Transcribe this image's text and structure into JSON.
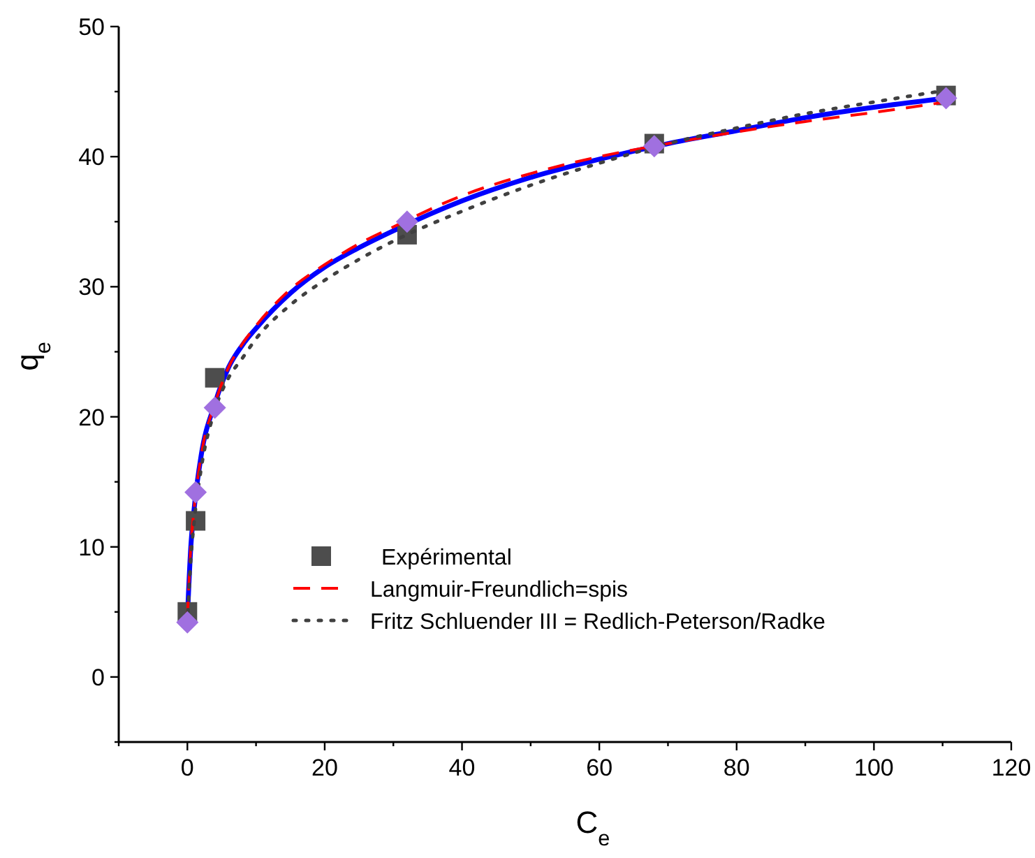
{
  "chart_data": {
    "type": "scatter",
    "xlabel": "C$_{e}$",
    "ylabel": "q$_{e}$",
    "xlim": [
      -10,
      120
    ],
    "xticks": [
      {
        "value": -10,
        "label": null
      },
      0,
      {
        "value": 10,
        "label": null
      },
      20,
      {
        "value": 30,
        "label": null
      },
      40,
      {
        "value": 50,
        "label": null
      },
      60,
      {
        "value": 70,
        "label": null
      },
      80,
      {
        "value": 90,
        "label": null
      },
      100,
      {
        "value": 110,
        "label": null
      },
      120
    ],
    "ylim": [
      -5,
      50
    ],
    "yticks": [
      {
        "value": -5,
        "label": null
      },
      0,
      {
        "value": 5,
        "label": null
      },
      10,
      {
        "value": 15,
        "label": null
      },
      20,
      {
        "value": 25,
        "label": null
      },
      30,
      {
        "value": 35,
        "label": null
      },
      40,
      {
        "value": 45,
        "label": null
      },
      50
    ],
    "grid": false,
    "legend": "bottom",
    "series": [
      {
        "name": "Expérimental",
        "color": "#4d4d4d",
        "marker": "square",
        "x": [
          0,
          1.2,
          4,
          32,
          68,
          110.5
        ],
        "values": [
          5,
          12,
          23,
          34,
          41,
          44.7
        ]
      },
      {
        "type": "line",
        "name": "Langmuir-Freundlich=spis",
        "color": "#ff0000",
        "line_style": "dashed",
        "marker": "none",
        "x": [
          0,
          0.5,
          1,
          2,
          4,
          6,
          8,
          10,
          15,
          20,
          25,
          30,
          40,
          50,
          60,
          70,
          80,
          90,
          100,
          110.5
        ],
        "values": [
          4.5,
          10,
          13,
          17,
          21,
          23.8,
          25.6,
          27,
          29.8,
          31.7,
          33.3,
          34.6,
          37,
          38.7,
          40,
          41,
          41.9,
          42.7,
          43.4,
          44.2
        ]
      },
      {
        "type": "line",
        "name": "Fritz Schluender III = Redlich-Peterson/Radke",
        "color": "#404040",
        "line_style": "dotted",
        "marker": "none",
        "x": [
          0,
          0.5,
          1,
          2,
          4,
          6,
          8,
          10,
          15,
          20,
          25,
          30,
          40,
          50,
          60,
          70,
          80,
          90,
          100,
          110.5
        ],
        "values": [
          4,
          9,
          12,
          16,
          20.5,
          23,
          24.5,
          26,
          28.6,
          30.5,
          32.1,
          33.5,
          35.8,
          37.8,
          39.5,
          41,
          42.2,
          43.3,
          44.2,
          45.1
        ]
      },
      {
        "color": "#a070e0",
        "marker": "diamond",
        "x": [
          0,
          1.2,
          4,
          32,
          68,
          110.5
        ],
        "values": [
          4.2,
          14.2,
          20.7,
          35,
          40.8,
          44.5
        ]
      },
      {
        "type": "line",
        "color": "#0000ff",
        "line_style": "solid",
        "marker": "none",
        "x": [
          0,
          0.5,
          1,
          2,
          4,
          6,
          8,
          10,
          15,
          20,
          25,
          30,
          40,
          50,
          60,
          70,
          80,
          90,
          100,
          110.5
        ],
        "values": [
          4.5,
          10,
          13,
          17,
          21,
          23.8,
          25.5,
          26.8,
          29.5,
          31.5,
          33,
          34.3,
          36.6,
          38.4,
          39.8,
          41,
          42,
          43,
          43.8,
          44.5
        ]
      }
    ]
  }
}
